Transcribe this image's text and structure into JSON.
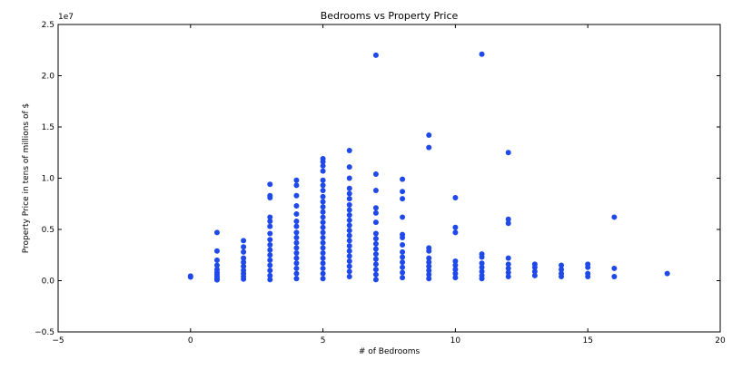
{
  "chart_data": {
    "type": "scatter",
    "title": "Bedrooms vs Property Price",
    "xlabel": "# of Bedrooms",
    "ylabel": "Property Price in tens of millions of $",
    "y_offset_label": "1e7",
    "xlim": [
      -5,
      20
    ],
    "ylim": [
      -5000000,
      25000000
    ],
    "xticks": [
      -5,
      0,
      5,
      10,
      15,
      20
    ],
    "yticks": [
      -5000000,
      0,
      5000000,
      10000000,
      15000000,
      20000000,
      25000000
    ],
    "xtick_labels": [
      "−5",
      "0",
      "5",
      "10",
      "15",
      "20"
    ],
    "ytick_labels": [
      "−0.5",
      "0.0",
      "0.5",
      "1.0",
      "1.5",
      "2.0",
      "2.5"
    ],
    "grid": false,
    "marker_color": "#1f49e8",
    "points": [
      {
        "x": 0,
        "y": 350000
      },
      {
        "x": 0,
        "y": 450000
      },
      {
        "x": 1,
        "y": 4700000
      },
      {
        "x": 1,
        "y": 2900000
      },
      {
        "x": 1,
        "y": 2000000
      },
      {
        "x": 1,
        "y": 1500000
      },
      {
        "x": 1,
        "y": 1100000
      },
      {
        "x": 1,
        "y": 800000
      },
      {
        "x": 1,
        "y": 600000
      },
      {
        "x": 1,
        "y": 400000
      },
      {
        "x": 1,
        "y": 200000
      },
      {
        "x": 1,
        "y": 80000
      },
      {
        "x": 2,
        "y": 3900000
      },
      {
        "x": 2,
        "y": 3300000
      },
      {
        "x": 2,
        "y": 2800000
      },
      {
        "x": 2,
        "y": 2200000
      },
      {
        "x": 2,
        "y": 1800000
      },
      {
        "x": 2,
        "y": 1400000
      },
      {
        "x": 2,
        "y": 1000000
      },
      {
        "x": 2,
        "y": 700000
      },
      {
        "x": 2,
        "y": 400000
      },
      {
        "x": 2,
        "y": 150000
      },
      {
        "x": 3,
        "y": 9400000
      },
      {
        "x": 3,
        "y": 8300000
      },
      {
        "x": 3,
        "y": 8100000
      },
      {
        "x": 3,
        "y": 6200000
      },
      {
        "x": 3,
        "y": 5800000
      },
      {
        "x": 3,
        "y": 5300000
      },
      {
        "x": 3,
        "y": 4600000
      },
      {
        "x": 3,
        "y": 4000000
      },
      {
        "x": 3,
        "y": 3500000
      },
      {
        "x": 3,
        "y": 3000000
      },
      {
        "x": 3,
        "y": 2500000
      },
      {
        "x": 3,
        "y": 2000000
      },
      {
        "x": 3,
        "y": 1500000
      },
      {
        "x": 3,
        "y": 1000000
      },
      {
        "x": 3,
        "y": 500000
      },
      {
        "x": 3,
        "y": 100000
      },
      {
        "x": 4,
        "y": 9800000
      },
      {
        "x": 4,
        "y": 9300000
      },
      {
        "x": 4,
        "y": 8300000
      },
      {
        "x": 4,
        "y": 7300000
      },
      {
        "x": 4,
        "y": 6500000
      },
      {
        "x": 4,
        "y": 5800000
      },
      {
        "x": 4,
        "y": 5300000
      },
      {
        "x": 4,
        "y": 4700000
      },
      {
        "x": 4,
        "y": 4200000
      },
      {
        "x": 4,
        "y": 3700000
      },
      {
        "x": 4,
        "y": 3200000
      },
      {
        "x": 4,
        "y": 2700000
      },
      {
        "x": 4,
        "y": 2200000
      },
      {
        "x": 4,
        "y": 1700000
      },
      {
        "x": 4,
        "y": 1200000
      },
      {
        "x": 4,
        "y": 700000
      },
      {
        "x": 4,
        "y": 200000
      },
      {
        "x": 5,
        "y": 11900000
      },
      {
        "x": 5,
        "y": 11600000
      },
      {
        "x": 5,
        "y": 11200000
      },
      {
        "x": 5,
        "y": 10700000
      },
      {
        "x": 5,
        "y": 9800000
      },
      {
        "x": 5,
        "y": 9300000
      },
      {
        "x": 5,
        "y": 8800000
      },
      {
        "x": 5,
        "y": 8200000
      },
      {
        "x": 5,
        "y": 7700000
      },
      {
        "x": 5,
        "y": 7200000
      },
      {
        "x": 5,
        "y": 6700000
      },
      {
        "x": 5,
        "y": 6200000
      },
      {
        "x": 5,
        "y": 5700000
      },
      {
        "x": 5,
        "y": 5200000
      },
      {
        "x": 5,
        "y": 4700000
      },
      {
        "x": 5,
        "y": 4200000
      },
      {
        "x": 5,
        "y": 3700000
      },
      {
        "x": 5,
        "y": 3200000
      },
      {
        "x": 5,
        "y": 2700000
      },
      {
        "x": 5,
        "y": 2200000
      },
      {
        "x": 5,
        "y": 1700000
      },
      {
        "x": 5,
        "y": 1200000
      },
      {
        "x": 5,
        "y": 700000
      },
      {
        "x": 5,
        "y": 200000
      },
      {
        "x": 6,
        "y": 12700000
      },
      {
        "x": 6,
        "y": 11100000
      },
      {
        "x": 6,
        "y": 10000000
      },
      {
        "x": 6,
        "y": 9000000
      },
      {
        "x": 6,
        "y": 8500000
      },
      {
        "x": 6,
        "y": 8000000
      },
      {
        "x": 6,
        "y": 7400000
      },
      {
        "x": 6,
        "y": 6900000
      },
      {
        "x": 6,
        "y": 6400000
      },
      {
        "x": 6,
        "y": 5900000
      },
      {
        "x": 6,
        "y": 5400000
      },
      {
        "x": 6,
        "y": 4900000
      },
      {
        "x": 6,
        "y": 4400000
      },
      {
        "x": 6,
        "y": 3900000
      },
      {
        "x": 6,
        "y": 3400000
      },
      {
        "x": 6,
        "y": 2900000
      },
      {
        "x": 6,
        "y": 2400000
      },
      {
        "x": 6,
        "y": 1900000
      },
      {
        "x": 6,
        "y": 1400000
      },
      {
        "x": 6,
        "y": 900000
      },
      {
        "x": 6,
        "y": 400000
      },
      {
        "x": 7,
        "y": 22000000
      },
      {
        "x": 7,
        "y": 10400000
      },
      {
        "x": 7,
        "y": 8800000
      },
      {
        "x": 7,
        "y": 7100000
      },
      {
        "x": 7,
        "y": 6600000
      },
      {
        "x": 7,
        "y": 5700000
      },
      {
        "x": 7,
        "y": 4600000
      },
      {
        "x": 7,
        "y": 4100000
      },
      {
        "x": 7,
        "y": 3600000
      },
      {
        "x": 7,
        "y": 3100000
      },
      {
        "x": 7,
        "y": 2600000
      },
      {
        "x": 7,
        "y": 2100000
      },
      {
        "x": 7,
        "y": 1600000
      },
      {
        "x": 7,
        "y": 1100000
      },
      {
        "x": 7,
        "y": 600000
      },
      {
        "x": 7,
        "y": 100000
      },
      {
        "x": 8,
        "y": 9900000
      },
      {
        "x": 8,
        "y": 8700000
      },
      {
        "x": 8,
        "y": 8000000
      },
      {
        "x": 8,
        "y": 6200000
      },
      {
        "x": 8,
        "y": 4500000
      },
      {
        "x": 8,
        "y": 4200000
      },
      {
        "x": 8,
        "y": 3500000
      },
      {
        "x": 8,
        "y": 2800000
      },
      {
        "x": 8,
        "y": 2300000
      },
      {
        "x": 8,
        "y": 1800000
      },
      {
        "x": 8,
        "y": 1300000
      },
      {
        "x": 8,
        "y": 800000
      },
      {
        "x": 8,
        "y": 300000
      },
      {
        "x": 9,
        "y": 14200000
      },
      {
        "x": 9,
        "y": 13000000
      },
      {
        "x": 9,
        "y": 3200000
      },
      {
        "x": 9,
        "y": 2900000
      },
      {
        "x": 9,
        "y": 2200000
      },
      {
        "x": 9,
        "y": 1800000
      },
      {
        "x": 9,
        "y": 1400000
      },
      {
        "x": 9,
        "y": 1000000
      },
      {
        "x": 9,
        "y": 600000
      },
      {
        "x": 9,
        "y": 200000
      },
      {
        "x": 10,
        "y": 8100000
      },
      {
        "x": 10,
        "y": 5200000
      },
      {
        "x": 10,
        "y": 4700000
      },
      {
        "x": 10,
        "y": 1900000
      },
      {
        "x": 10,
        "y": 1500000
      },
      {
        "x": 10,
        "y": 1100000
      },
      {
        "x": 10,
        "y": 700000
      },
      {
        "x": 10,
        "y": 300000
      },
      {
        "x": 11,
        "y": 22100000
      },
      {
        "x": 11,
        "y": 2600000
      },
      {
        "x": 11,
        "y": 2300000
      },
      {
        "x": 11,
        "y": 1700000
      },
      {
        "x": 11,
        "y": 1300000
      },
      {
        "x": 11,
        "y": 900000
      },
      {
        "x": 11,
        "y": 500000
      },
      {
        "x": 11,
        "y": 200000
      },
      {
        "x": 12,
        "y": 12500000
      },
      {
        "x": 12,
        "y": 6000000
      },
      {
        "x": 12,
        "y": 5600000
      },
      {
        "x": 12,
        "y": 2200000
      },
      {
        "x": 12,
        "y": 1600000
      },
      {
        "x": 12,
        "y": 1200000
      },
      {
        "x": 12,
        "y": 800000
      },
      {
        "x": 12,
        "y": 400000
      },
      {
        "x": 13,
        "y": 1600000
      },
      {
        "x": 13,
        "y": 1300000
      },
      {
        "x": 13,
        "y": 900000
      },
      {
        "x": 13,
        "y": 500000
      },
      {
        "x": 14,
        "y": 1500000
      },
      {
        "x": 14,
        "y": 1100000
      },
      {
        "x": 14,
        "y": 700000
      },
      {
        "x": 14,
        "y": 400000
      },
      {
        "x": 15,
        "y": 1600000
      },
      {
        "x": 15,
        "y": 1300000
      },
      {
        "x": 15,
        "y": 700000
      },
      {
        "x": 15,
        "y": 400000
      },
      {
        "x": 16,
        "y": 6200000
      },
      {
        "x": 16,
        "y": 1200000
      },
      {
        "x": 16,
        "y": 400000
      },
      {
        "x": 18,
        "y": 700000
      }
    ]
  }
}
